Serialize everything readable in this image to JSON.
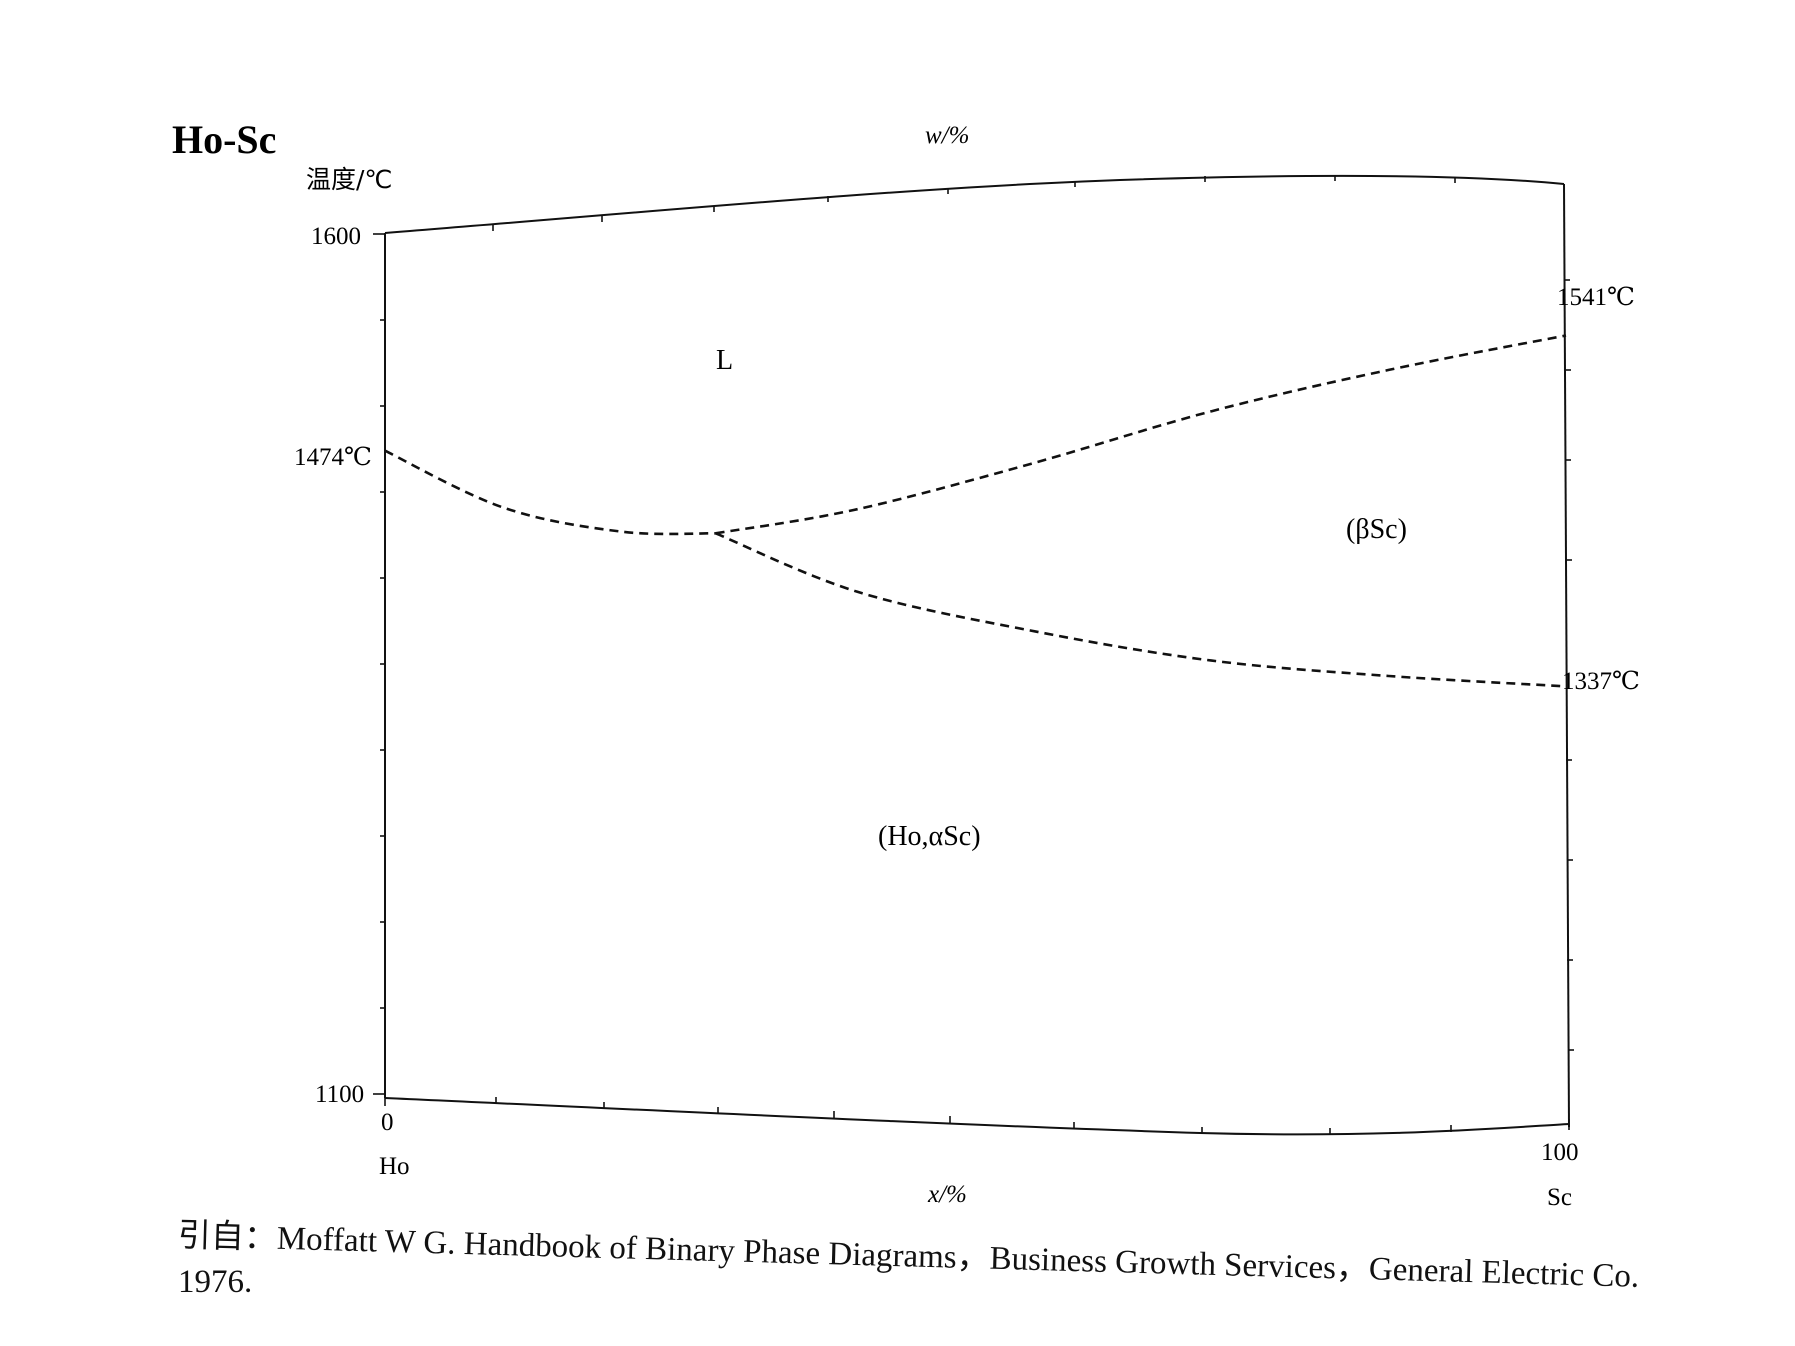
{
  "chart_data": {
    "type": "line",
    "title": "Ho-Sc",
    "ylabel": "温度/℃",
    "xlabel": "x/%",
    "top_axis_label": "w/%",
    "ylim": [
      1100,
      1600
    ],
    "xlim": [
      0,
      100
    ],
    "y_ticks": [
      "1600",
      "1100"
    ],
    "x_ticks": [
      "0",
      "100"
    ],
    "x_end_labels": [
      "Ho",
      "Sc"
    ],
    "series": [
      {
        "points": [
          [
            0,
            1474
          ],
          [
            10,
            1441
          ],
          [
            20,
            1427
          ],
          [
            28,
            1426
          ]
        ]
      },
      {
        "points": [
          [
            28,
            1426
          ],
          [
            40,
            1440
          ],
          [
            55,
            1467
          ],
          [
            70,
            1497
          ],
          [
            85,
            1521
          ],
          [
            100,
            1541
          ]
        ]
      },
      {
        "points": [
          [
            28,
            1426
          ],
          [
            40,
            1392
          ],
          [
            55,
            1369
          ],
          [
            70,
            1352
          ],
          [
            85,
            1343
          ],
          [
            100,
            1337
          ]
        ]
      }
    ],
    "annotations": [
      {
        "text": "1474℃"
      },
      {
        "text": "1541℃"
      },
      {
        "text": "1337℃"
      }
    ],
    "regions": [
      {
        "text": "L"
      },
      {
        "text": "(βSc)"
      },
      {
        "text": "(Ho,αSc)"
      }
    ],
    "grid": false
  },
  "citation": {
    "line1": "引自：Moffatt W G. Handbook of Binary Phase Diagrams，Business Growth Services，General Electric Co.",
    "line2": "1976."
  }
}
